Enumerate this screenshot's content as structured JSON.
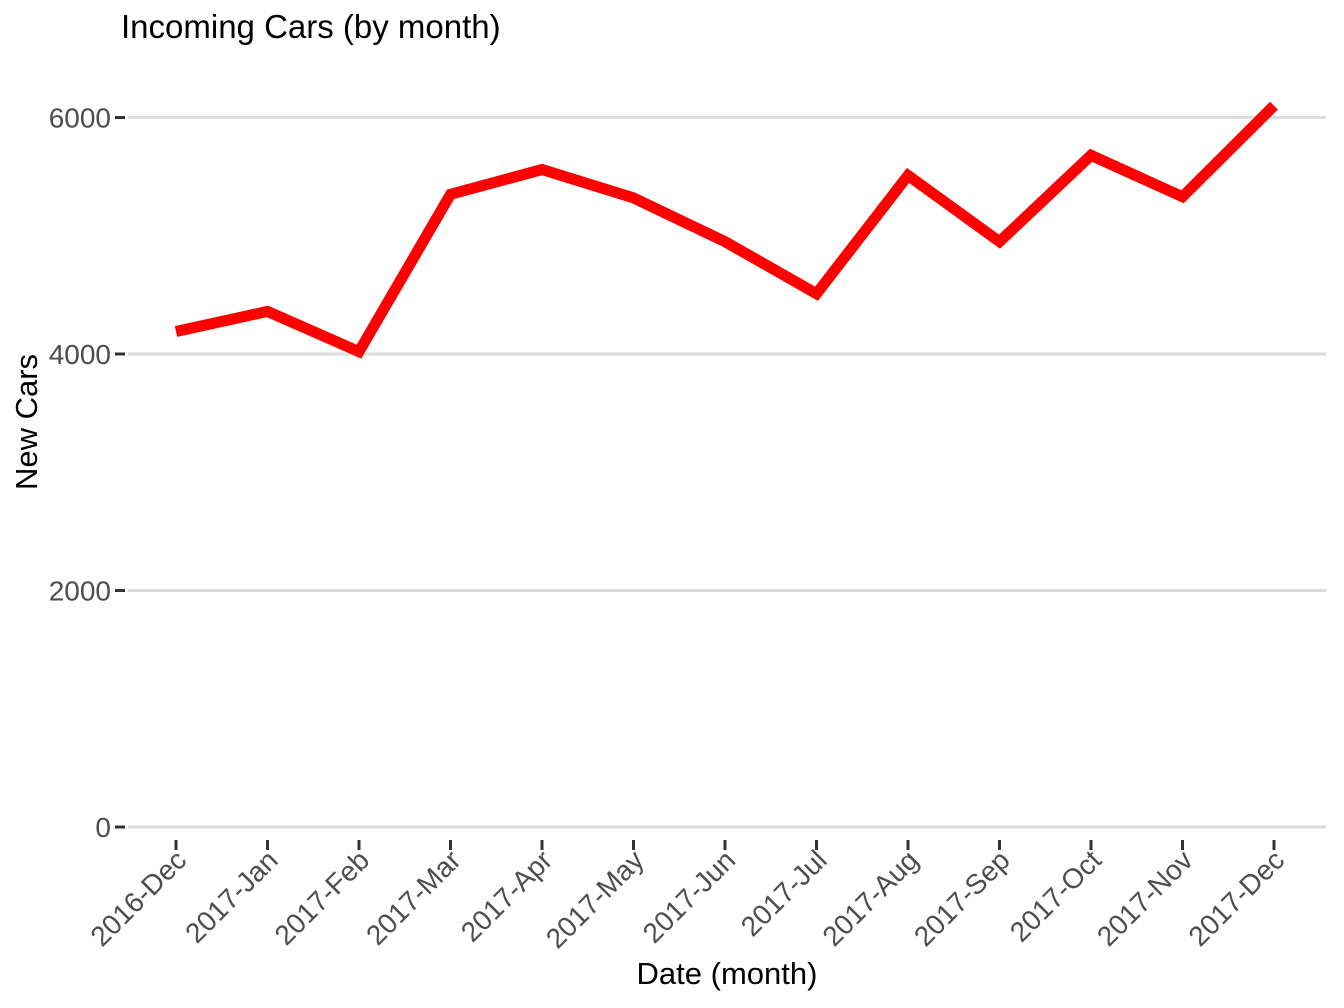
{
  "chart_data": {
    "type": "line",
    "title": "Incoming Cars (by month)",
    "xlabel": "Date (month)",
    "ylabel": "New Cars",
    "categories": [
      "2016-Dec",
      "2017-Jan",
      "2017-Feb",
      "2017-Mar",
      "2017-Apr",
      "2017-May",
      "2017-Jun",
      "2017-Jul",
      "2017-Aug",
      "2017-Sep",
      "2017-Oct",
      "2017-Nov",
      "2017-Dec"
    ],
    "series": [
      {
        "name": "New Cars",
        "values": [
          4190,
          4360,
          4020,
          5350,
          5560,
          5320,
          4950,
          4510,
          5510,
          4950,
          5680,
          5330,
          6100
        ]
      }
    ],
    "yticks": [
      0,
      2000,
      4000,
      6000
    ],
    "ylim": [
      0,
      6300
    ],
    "grid": "horizontal-major-only",
    "legend": "none",
    "x_label_angle": -45,
    "colors": {
      "line": "#ff0000",
      "gridline": "#dcdcdc",
      "tick_mark": "#333333",
      "tick_label": "#4d4d4d",
      "title": "#000000",
      "background": "#ffffff"
    },
    "line_width": 11
  }
}
